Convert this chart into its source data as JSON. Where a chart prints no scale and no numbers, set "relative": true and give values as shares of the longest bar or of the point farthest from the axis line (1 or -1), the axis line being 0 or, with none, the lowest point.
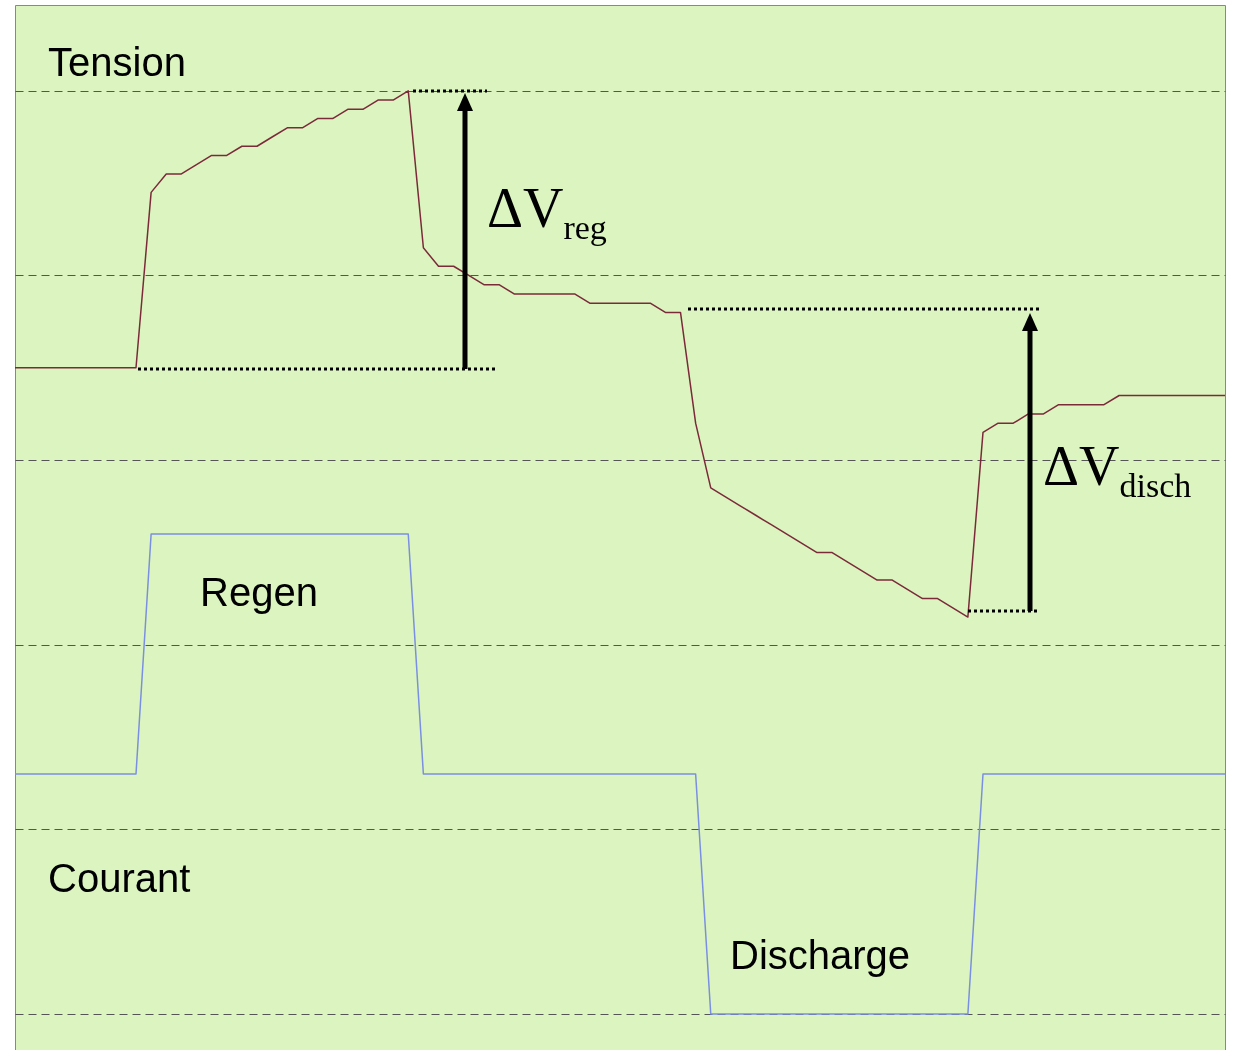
{
  "chart_data": {
    "type": "line",
    "relative": true,
    "grid": "y",
    "marker": "none",
    "line_style": "solid",
    "categories": [
      null,
      null,
      null,
      null,
      null,
      null,
      null,
      null,
      null,
      null,
      null,
      null,
      null,
      null,
      null,
      null,
      null,
      null,
      null,
      null,
      null,
      null,
      null,
      null,
      null,
      null,
      null,
      null,
      null,
      null,
      null,
      null,
      null,
      null,
      null,
      null,
      null,
      null,
      null,
      null,
      null,
      null,
      null,
      null,
      null,
      null,
      null,
      null,
      null,
      null,
      null,
      null,
      null,
      null,
      null,
      null,
      null,
      null,
      null,
      null,
      null,
      null,
      null,
      null,
      null,
      null,
      null,
      null,
      null,
      null,
      null,
      null,
      null,
      null,
      null,
      null,
      null,
      null,
      null,
      null,
      null
    ],
    "series": [
      {
        "name": "Tension",
        "color": "#7b2a3a",
        "values": [
          0.7,
          0.7,
          0.7,
          0.7,
          0.7,
          0.7,
          0.7,
          0.7,
          0.7,
          0.89,
          0.91,
          0.91,
          0.92,
          0.93,
          0.93,
          0.94,
          0.94,
          0.95,
          0.96,
          0.96,
          0.97,
          0.97,
          0.98,
          0.98,
          0.99,
          0.99,
          1.0,
          0.83,
          0.81,
          0.81,
          0.8,
          0.79,
          0.79,
          0.78,
          0.78,
          0.78,
          0.78,
          0.78,
          0.77,
          0.77,
          0.77,
          0.77,
          0.77,
          0.76,
          0.76,
          0.64,
          0.57,
          0.56,
          0.55,
          0.54,
          0.53,
          0.52,
          0.51,
          0.5,
          0.5,
          0.49,
          0.48,
          0.47,
          0.47,
          0.46,
          0.45,
          0.45,
          0.44,
          0.43,
          0.63,
          0.64,
          0.64,
          0.65,
          0.65,
          0.66,
          0.66,
          0.66,
          0.66,
          0.67,
          0.67,
          0.67,
          0.67,
          0.67,
          0.67,
          0.67,
          0.67
        ]
      },
      {
        "name": "Courant",
        "color": "#7b8fe0",
        "values": [
          0.26,
          0.26,
          0.26,
          0.26,
          0.26,
          0.26,
          0.26,
          0.26,
          0.26,
          0.52,
          0.52,
          0.52,
          0.52,
          0.52,
          0.52,
          0.52,
          0.52,
          0.52,
          0.52,
          0.52,
          0.52,
          0.52,
          0.52,
          0.52,
          0.52,
          0.52,
          0.52,
          0.26,
          0.26,
          0.26,
          0.26,
          0.26,
          0.26,
          0.26,
          0.26,
          0.26,
          0.26,
          0.26,
          0.26,
          0.26,
          0.26,
          0.26,
          0.26,
          0.26,
          0.26,
          0.26,
          0,
          0,
          0,
          0,
          0,
          0,
          0,
          0,
          0,
          0,
          0,
          0,
          0,
          0,
          0,
          0,
          0,
          0,
          0.26,
          0.26,
          0.26,
          0.26,
          0.26,
          0.26,
          0.26,
          0.26,
          0.26,
          0.26,
          0.26,
          0.26,
          0.26,
          0.26,
          0.26,
          0.26,
          0.26
        ]
      }
    ],
    "annotations": [
      "Regen",
      "Discharge",
      "ΔV$_{reg}$",
      "ΔV$_{disch}$"
    ]
  }
}
